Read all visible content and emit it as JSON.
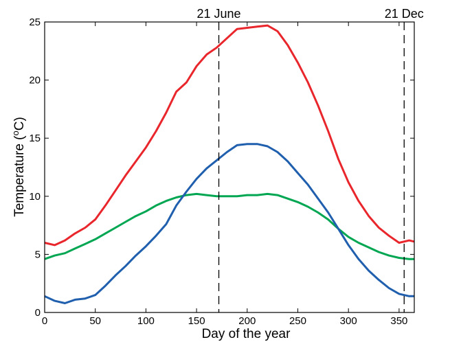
{
  "chart_data": {
    "type": "line",
    "xlabel": "Day of the year",
    "ylabel": "Temperature (",
    "ylabel_sup": "o",
    "ylabel_unit": "C)",
    "xlim": [
      0,
      365
    ],
    "ylim": [
      0,
      25
    ],
    "xticks": [
      0,
      50,
      100,
      150,
      200,
      250,
      300,
      350
    ],
    "yticks": [
      0,
      5,
      10,
      15,
      20,
      25
    ],
    "grid": false,
    "legend": "none",
    "vlines": [
      {
        "x": 172,
        "label": "21 June",
        "style": "dashed"
      },
      {
        "x": 355,
        "label": "21 Dec",
        "style": "dashed"
      }
    ],
    "x": [
      0,
      10,
      20,
      30,
      40,
      50,
      60,
      70,
      80,
      90,
      100,
      110,
      120,
      130,
      140,
      150,
      160,
      170,
      180,
      190,
      200,
      210,
      220,
      230,
      240,
      250,
      260,
      270,
      280,
      290,
      300,
      310,
      320,
      330,
      340,
      350,
      360,
      365
    ],
    "series": [
      {
        "color": "#e8262b",
        "values": [
          6.0,
          5.8,
          6.2,
          6.8,
          7.3,
          8.0,
          9.2,
          10.5,
          11.8,
          13.0,
          14.2,
          15.6,
          17.2,
          19.0,
          19.8,
          21.2,
          22.2,
          22.8,
          23.6,
          24.4,
          24.5,
          24.6,
          24.7,
          24.2,
          23.0,
          21.5,
          19.8,
          17.8,
          15.6,
          13.2,
          11.2,
          9.6,
          8.3,
          7.3,
          6.6,
          6.0,
          6.2,
          6.1
        ]
      },
      {
        "color": "#00a651",
        "values": [
          4.6,
          4.9,
          5.1,
          5.5,
          5.9,
          6.3,
          6.8,
          7.3,
          7.8,
          8.3,
          8.7,
          9.2,
          9.6,
          9.9,
          10.1,
          10.2,
          10.1,
          10.0,
          10.0,
          10.0,
          10.1,
          10.1,
          10.2,
          10.1,
          9.8,
          9.5,
          9.1,
          8.6,
          8.0,
          7.2,
          6.5,
          6.0,
          5.6,
          5.2,
          4.9,
          4.7,
          4.6,
          4.6
        ]
      },
      {
        "color": "#1f5fad",
        "values": [
          1.4,
          1.0,
          0.8,
          1.1,
          1.2,
          1.5,
          2.3,
          3.2,
          4.0,
          4.9,
          5.7,
          6.6,
          7.6,
          9.2,
          10.4,
          11.5,
          12.4,
          13.1,
          13.8,
          14.4,
          14.5,
          14.5,
          14.3,
          13.8,
          13.0,
          12.0,
          11.0,
          9.8,
          8.6,
          7.2,
          5.8,
          4.6,
          3.6,
          2.8,
          2.1,
          1.6,
          1.4,
          1.4
        ]
      }
    ]
  }
}
